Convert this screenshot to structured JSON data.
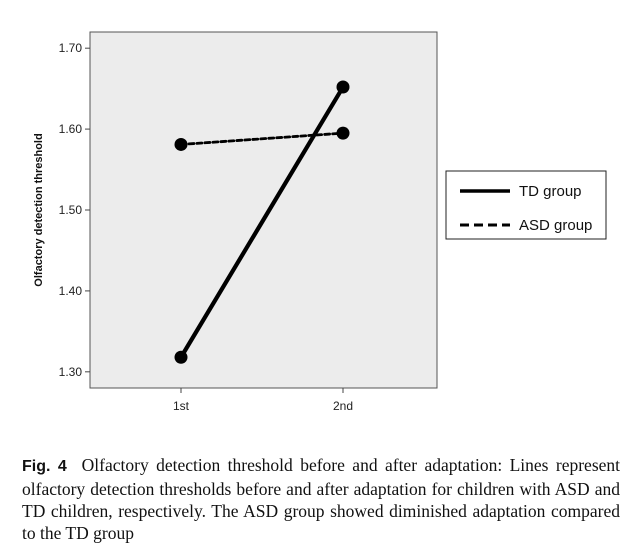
{
  "chart_data": {
    "type": "line",
    "categories": [
      "1st",
      "2nd"
    ],
    "series": [
      {
        "name": "TD group",
        "values": [
          1.318,
          1.652
        ],
        "style": "solid"
      },
      {
        "name": "ASD group",
        "values": [
          1.581,
          1.595
        ],
        "style": "dashed"
      }
    ],
    "ylabel": "Olfactory detection threshold",
    "ylim": [
      1.28,
      1.72
    ],
    "yticks": [
      1.3,
      1.4,
      1.5,
      1.6,
      1.7
    ],
    "ytick_labels": [
      "1.30",
      "1.40",
      "1.50",
      "1.60",
      "1.70"
    ],
    "legend_position": "right",
    "grid": false,
    "background_color": "#ececec",
    "line_color": "#000000"
  },
  "caption": {
    "label": "Fig. 4",
    "text": "Olfactory detection threshold before and after adaptation: Lines represent olfactory detection thresholds before and after adaptation for children with ASD and TD children, respectively. The ASD group showed diminished adaptation compared to the TD group"
  }
}
